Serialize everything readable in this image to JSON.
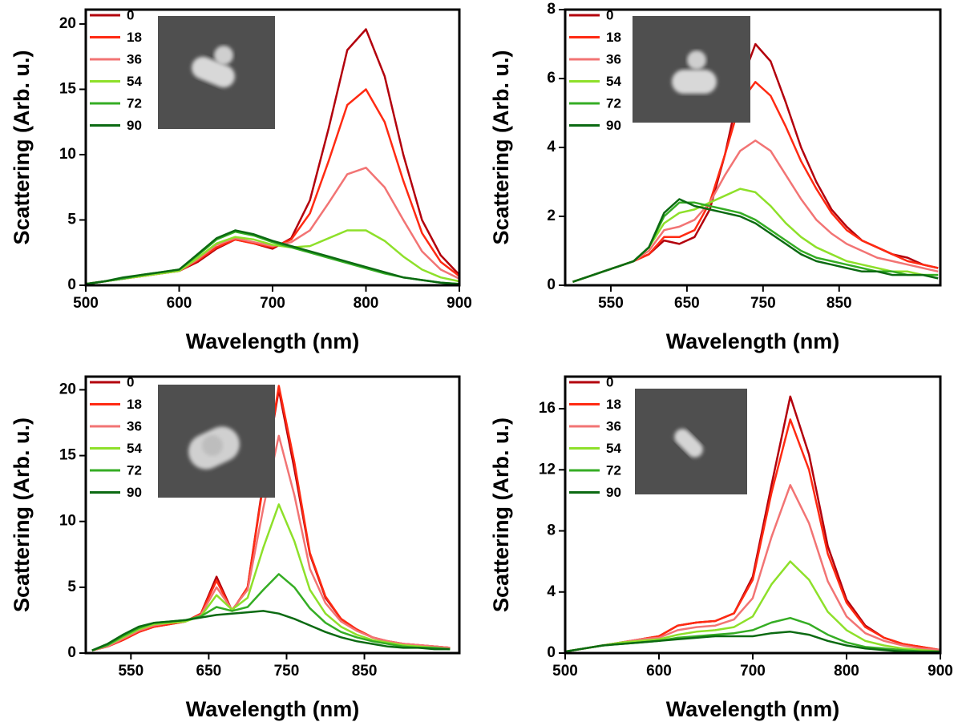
{
  "chart_data": [
    {
      "type": "line",
      "xlabel": "Wavelength (nm)",
      "ylabel": "Scattering (Arb. u.)",
      "xlim": [
        500,
        900
      ],
      "ylim": [
        0,
        21.1
      ],
      "xticks": [
        500,
        600,
        700,
        800,
        900
      ],
      "yticks": [
        0,
        5,
        10,
        15,
        20
      ],
      "legend": "upper left",
      "x": [
        500,
        520,
        540,
        560,
        580,
        600,
        620,
        640,
        660,
        680,
        700,
        720,
        740,
        760,
        780,
        800,
        820,
        840,
        860,
        880,
        900
      ],
      "series": [
        {
          "name": "0",
          "color": "#b3000c",
          "values": [
            0.1,
            0.3,
            0.5,
            0.7,
            0.9,
            1.1,
            1.8,
            2.8,
            3.5,
            3.2,
            2.8,
            3.6,
            6.5,
            12,
            18,
            19.6,
            16,
            10,
            5,
            2.3,
            0.8
          ]
        },
        {
          "name": "18",
          "color": "#ff2a12",
          "values": [
            0.1,
            0.3,
            0.5,
            0.7,
            0.9,
            1.1,
            1.9,
            2.9,
            3.5,
            3.2,
            2.9,
            3.5,
            5.5,
            9.5,
            13.8,
            15,
            12.5,
            8,
            4,
            1.8,
            0.7
          ]
        },
        {
          "name": "36",
          "color": "#f27474",
          "values": [
            0.1,
            0.3,
            0.5,
            0.7,
            0.9,
            1.1,
            2,
            3.1,
            3.6,
            3.3,
            3,
            3.3,
            4.2,
            6.3,
            8.5,
            9,
            7.5,
            5,
            2.6,
            1.2,
            0.5
          ]
        },
        {
          "name": "54",
          "color": "#8ee02a",
          "values": [
            0.1,
            0.3,
            0.5,
            0.7,
            0.9,
            1.1,
            2.1,
            3.2,
            3.7,
            3.5,
            3.1,
            2.9,
            3,
            3.6,
            4.2,
            4.2,
            3.4,
            2.2,
            1.2,
            0.6,
            0.3
          ]
        },
        {
          "name": "72",
          "color": "#35ad24",
          "values": [
            0.1,
            0.3,
            0.5,
            0.8,
            1,
            1.2,
            2.3,
            3.5,
            4.1,
            3.8,
            3.3,
            2.9,
            2.5,
            2.1,
            1.7,
            1.3,
            0.9,
            0.6,
            0.4,
            0.2,
            0.1
          ]
        },
        {
          "name": "90",
          "color": "#0b6a12",
          "values": [
            0.1,
            0.3,
            0.6,
            0.8,
            1,
            1.2,
            2.4,
            3.6,
            4.2,
            3.9,
            3.4,
            3,
            2.6,
            2.2,
            1.8,
            1.4,
            1,
            0.6,
            0.4,
            0.2,
            0.1
          ]
        }
      ]
    },
    {
      "type": "line",
      "xlabel": "Wavelength (nm)",
      "ylabel": "Scattering (Arb. u.)",
      "xlim": [
        490,
        983
      ],
      "ylim": [
        0,
        8
      ],
      "xticks": [
        550,
        650,
        750,
        850
      ],
      "yticks": [
        0,
        2,
        4,
        6,
        8
      ],
      "legend": "upper left",
      "x": [
        500,
        520,
        540,
        560,
        580,
        600,
        620,
        640,
        660,
        680,
        700,
        720,
        740,
        760,
        780,
        800,
        820,
        840,
        860,
        880,
        900,
        920,
        940,
        960,
        980
      ],
      "series": [
        {
          "name": "0",
          "color": "#b3000c",
          "values": [
            0.1,
            0.25,
            0.4,
            0.55,
            0.7,
            0.9,
            1.3,
            1.2,
            1.4,
            2.2,
            3.8,
            5.8,
            7,
            6.5,
            5.3,
            4,
            3,
            2.2,
            1.7,
            1.3,
            1.1,
            0.9,
            0.8,
            0.6,
            0.5
          ]
        },
        {
          "name": "18",
          "color": "#ff2a12",
          "values": [
            0.1,
            0.25,
            0.4,
            0.55,
            0.7,
            0.9,
            1.4,
            1.4,
            1.6,
            2.4,
            3.8,
            5.3,
            5.9,
            5.5,
            4.6,
            3.6,
            2.8,
            2.1,
            1.6,
            1.3,
            1.1,
            0.9,
            0.7,
            0.6,
            0.5
          ]
        },
        {
          "name": "36",
          "color": "#f27474",
          "values": [
            0.1,
            0.25,
            0.4,
            0.55,
            0.7,
            1,
            1.6,
            1.7,
            1.9,
            2.4,
            3.2,
            3.9,
            4.2,
            3.9,
            3.2,
            2.5,
            1.9,
            1.5,
            1.2,
            1,
            0.8,
            0.7,
            0.6,
            0.5,
            0.4
          ]
        },
        {
          "name": "54",
          "color": "#8ee02a",
          "values": [
            0.1,
            0.25,
            0.4,
            0.55,
            0.7,
            1.1,
            1.8,
            2.1,
            2.2,
            2.4,
            2.6,
            2.8,
            2.7,
            2.3,
            1.8,
            1.4,
            1.1,
            0.9,
            0.7,
            0.6,
            0.5,
            0.4,
            0.4,
            0.3,
            0.3
          ]
        },
        {
          "name": "72",
          "color": "#35ad24",
          "values": [
            0.1,
            0.25,
            0.4,
            0.55,
            0.7,
            1.1,
            2,
            2.4,
            2.4,
            2.3,
            2.2,
            2.1,
            1.9,
            1.6,
            1.3,
            1,
            0.8,
            0.7,
            0.6,
            0.5,
            0.4,
            0.4,
            0.3,
            0.3,
            0.3
          ]
        },
        {
          "name": "90",
          "color": "#0b6a12",
          "values": [
            0.1,
            0.25,
            0.4,
            0.55,
            0.7,
            1.1,
            2.1,
            2.5,
            2.3,
            2.2,
            2.1,
            2,
            1.8,
            1.5,
            1.2,
            0.9,
            0.7,
            0.6,
            0.5,
            0.4,
            0.4,
            0.3,
            0.3,
            0.3,
            0.2
          ]
        }
      ]
    },
    {
      "type": "line",
      "xlabel": "Wavelength (nm)",
      "ylabel": "Scattering (Arb. u.)",
      "xlim": [
        492,
        972
      ],
      "ylim": [
        0,
        21
      ],
      "xticks": [
        550,
        650,
        750,
        850
      ],
      "yticks": [
        0,
        5,
        10,
        15,
        20
      ],
      "legend": "upper left",
      "x": [
        500,
        520,
        540,
        560,
        580,
        600,
        620,
        640,
        660,
        680,
        700,
        720,
        740,
        760,
        780,
        800,
        820,
        840,
        860,
        880,
        900,
        920,
        940,
        960
      ],
      "series": [
        {
          "name": "0",
          "color": "#b3000c",
          "values": [
            0.2,
            0.5,
            1,
            1.6,
            2,
            2.2,
            2.4,
            3,
            5.8,
            3.2,
            5,
            13,
            20,
            14,
            7.5,
            4.2,
            2.6,
            1.8,
            1.2,
            0.9,
            0.7,
            0.6,
            0.5,
            0.4
          ]
        },
        {
          "name": "18",
          "color": "#ff2a12",
          "values": [
            0.2,
            0.5,
            1,
            1.6,
            2,
            2.2,
            2.4,
            3,
            5.5,
            3.2,
            5,
            12.8,
            20.3,
            14.5,
            7.6,
            4.3,
            2.6,
            1.8,
            1.2,
            0.9,
            0.7,
            0.6,
            0.5,
            0.4
          ]
        },
        {
          "name": "36",
          "color": "#f27474",
          "values": [
            0.2,
            0.5,
            1.1,
            1.7,
            2.1,
            2.3,
            2.4,
            2.9,
            5,
            3.3,
            4.8,
            11,
            16.5,
            12,
            6.4,
            3.8,
            2.4,
            1.7,
            1.2,
            0.9,
            0.7,
            0.6,
            0.5,
            0.4
          ]
        },
        {
          "name": "54",
          "color": "#8ee02a",
          "values": [
            0.2,
            0.6,
            1.2,
            1.8,
            2.2,
            2.3,
            2.4,
            2.8,
            4.4,
            3.3,
            4.2,
            8,
            11.3,
            8.5,
            4.8,
            3,
            2,
            1.4,
            1,
            0.8,
            0.6,
            0.5,
            0.4,
            0.3
          ]
        },
        {
          "name": "72",
          "color": "#35ad24",
          "values": [
            0.2,
            0.6,
            1.3,
            1.9,
            2.3,
            2.4,
            2.5,
            2.8,
            3.5,
            3.2,
            3.5,
            4.8,
            6,
            5,
            3.4,
            2.3,
            1.6,
            1.2,
            0.9,
            0.7,
            0.5,
            0.4,
            0.4,
            0.3
          ]
        },
        {
          "name": "90",
          "color": "#0b6a12",
          "values": [
            0.2,
            0.7,
            1.4,
            2,
            2.3,
            2.4,
            2.5,
            2.7,
            2.9,
            3,
            3.1,
            3.2,
            3,
            2.6,
            2.1,
            1.6,
            1.2,
            0.9,
            0.7,
            0.5,
            0.4,
            0.4,
            0.3,
            0.3
          ]
        }
      ]
    },
    {
      "type": "line",
      "xlabel": "Wavelength (nm)",
      "ylabel": "Scattering (Arb. u.)",
      "xlim": [
        500,
        900
      ],
      "ylim": [
        0,
        18.1
      ],
      "xticks": [
        500,
        600,
        700,
        800,
        900
      ],
      "yticks": [
        0,
        4,
        8,
        12,
        16
      ],
      "legend": "upper left",
      "x": [
        500,
        520,
        540,
        560,
        580,
        600,
        620,
        640,
        660,
        680,
        700,
        720,
        740,
        760,
        780,
        800,
        820,
        840,
        860,
        880,
        900
      ],
      "series": [
        {
          "name": "0",
          "color": "#b3000c",
          "values": [
            0.1,
            0.3,
            0.5,
            0.7,
            0.9,
            1.1,
            1.8,
            2,
            2.1,
            2.6,
            5,
            11,
            16.8,
            13,
            7,
            3.5,
            1.8,
            1,
            0.6,
            0.4,
            0.2
          ]
        },
        {
          "name": "18",
          "color": "#ff2a12",
          "values": [
            0.1,
            0.3,
            0.5,
            0.7,
            0.9,
            1.1,
            1.8,
            2,
            2.1,
            2.6,
            4.8,
            10.5,
            15.3,
            12,
            6.5,
            3.3,
            1.7,
            1,
            0.6,
            0.4,
            0.2
          ]
        },
        {
          "name": "36",
          "color": "#f27474",
          "values": [
            0.1,
            0.3,
            0.5,
            0.7,
            0.9,
            1,
            1.5,
            1.7,
            1.8,
            2.2,
            3.6,
            7.6,
            11,
            8.5,
            4.7,
            2.4,
            1.3,
            0.8,
            0.5,
            0.3,
            0.2
          ]
        },
        {
          "name": "54",
          "color": "#8ee02a",
          "values": [
            0.1,
            0.3,
            0.5,
            0.7,
            0.8,
            0.9,
            1.2,
            1.4,
            1.5,
            1.7,
            2.4,
            4.5,
            6,
            4.8,
            2.7,
            1.5,
            0.8,
            0.5,
            0.3,
            0.2,
            0.1
          ]
        },
        {
          "name": "72",
          "color": "#35ad24",
          "values": [
            0.1,
            0.3,
            0.5,
            0.6,
            0.7,
            0.8,
            1,
            1.1,
            1.2,
            1.3,
            1.5,
            2,
            2.3,
            1.9,
            1.2,
            0.7,
            0.4,
            0.3,
            0.2,
            0.1,
            0.1
          ]
        },
        {
          "name": "90",
          "color": "#0b6a12",
          "values": [
            0.1,
            0.3,
            0.5,
            0.6,
            0.7,
            0.8,
            0.9,
            1,
            1.1,
            1.1,
            1.1,
            1.3,
            1.4,
            1.2,
            0.8,
            0.5,
            0.3,
            0.2,
            0.1,
            0.1,
            0.1
          ]
        }
      ]
    }
  ]
}
